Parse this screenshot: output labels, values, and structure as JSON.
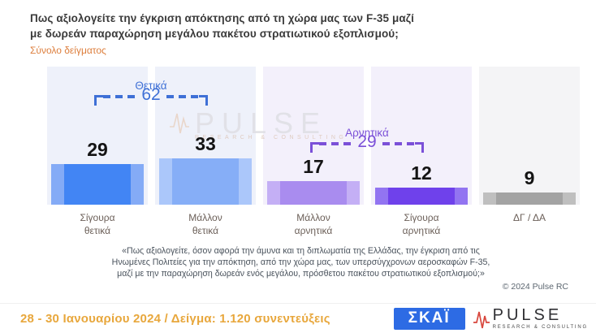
{
  "header": {
    "title": "Πως αξιολογείτε την έγκριση απόκτησης από τη χώρα μας των F-35 μαζί\nμε δωρεάν παραχώρηση μεγάλου πακέτου στρατιωτικού εξοπλισμού;",
    "subtitle": "Σύνολο δείγματος"
  },
  "chart_data": {
    "type": "bar",
    "orientation": "vertical",
    "data_labels": true,
    "categories": [
      "Σίγουρα\nθετικά",
      "Μάλλον\nθετικά",
      "Μάλλον\nαρνητικά",
      "Σίγουρα\nαρνητικά",
      "ΔΓ / ΔΑ"
    ],
    "values": [
      29,
      33,
      17,
      12,
      9
    ],
    "groups": [
      {
        "label": "Θετικά",
        "value": 62,
        "color": "#3e70d6",
        "from_category": 0,
        "to_category": 1
      },
      {
        "label": "Αρνητικά",
        "value": 29,
        "color": "#7b50d8",
        "from_category": 2,
        "to_category": 3
      }
    ],
    "bar_colors": [
      {
        "center": "#4285f4",
        "edge": "#84abf6"
      },
      {
        "center": "#86aef7",
        "edge": "#abc7fa"
      },
      {
        "center": "#a98cef",
        "edge": "#c4aff5"
      },
      {
        "center": "#6f41eb",
        "edge": "#9274f1"
      },
      {
        "center": "#a3a3a3",
        "edge": "#bfbfbf"
      }
    ],
    "panel_colors": [
      "#eef1fa",
      "#eef1fa",
      "#f3f0fb",
      "#f3f0fb",
      "#f4f4f6"
    ],
    "title": "Πως αξιολογείτε την έγκριση απόκτησης από τη χώρα μας των F-35 μαζί με δωρεάν παραχώρηση μεγάλου πακέτου στρατιωτικού εξοπλισμού;",
    "xlabel": "",
    "ylabel": ""
  },
  "watermark": {
    "text": "PULSE",
    "subtext": "RESEARCH & CONSULTING"
  },
  "footnote": "«Πως αξιολογείτε, όσον αφορά την άμυνα και τη διπλωματία της Ελλάδας, την έγκριση από τις\nΗνωμένες Πολιτείες για την απόκτηση, από την χώρα μας, των υπερσύγχρονων αεροσκαφών F-35,\nμαζί με την παραχώρηση δωρεάν ενός μεγάλου, πρόσθετου πακέτου στρατιωτικού εξοπλισμού;»",
  "copyright": "© 2024 Pulse RC",
  "footer": {
    "survey_info": "28 - 30 Ιανουαρίου 2024 / Δείγμα: 1.120 συνεντεύξεις",
    "skai_logo_text": "ΣΚΑΪ",
    "pulse_logo_text": "PULSE",
    "pulse_logo_subtext": "RESEARCH & CONSULTING"
  },
  "colors": {
    "subtitle_orange": "#dd7e3c",
    "footer_orange": "#e8a73c",
    "skai_blue": "#2d6be4",
    "pulse_red": "#d8463c"
  }
}
